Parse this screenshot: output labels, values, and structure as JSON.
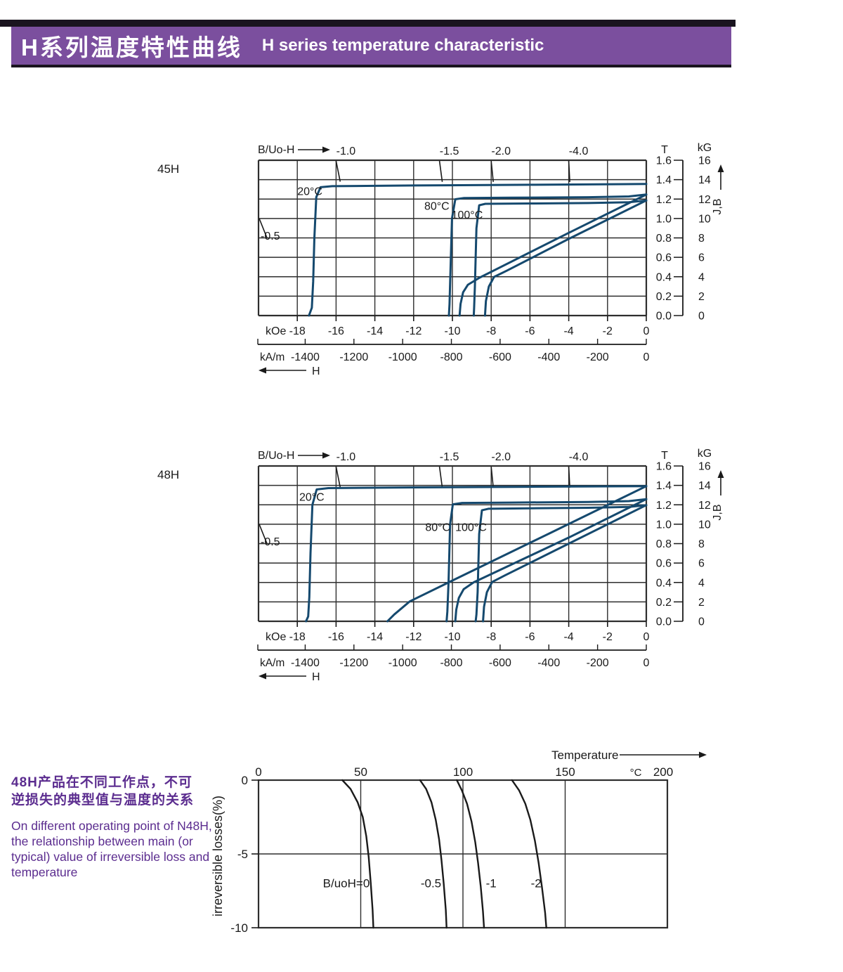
{
  "header": {
    "title_zh": "H系列温度特性曲线",
    "title_en": "H  series temperature characteristic"
  },
  "colors": {
    "banner": "#7b4f9e",
    "top_bar": "#1a141f",
    "curve_blue": "#15496e",
    "loss_curve": "#1a1a1a",
    "grid": "#2e2e2e",
    "ink": "#1a1a1a",
    "note_purple": "#5b2c8f"
  },
  "chart_data": [
    {
      "id": "demag-45H",
      "type": "line",
      "title": "45H",
      "permeance_label": "B/Uo-H",
      "h_label": "H",
      "jb_label": "J,B",
      "x_unit_primary": "kOe",
      "x_unit_secondary": "kA/m",
      "y_unit_primary": "T",
      "y_unit_secondary": "kG",
      "xlim_kOe": [
        -20,
        0
      ],
      "ylim_T": [
        0,
        1.6
      ],
      "x_ticks_kOe": [
        "-18",
        "-16",
        "-14",
        "-12",
        "-10",
        "-8",
        "-6",
        "-4",
        "-2",
        "0"
      ],
      "x_ticks_kAm": [
        "-1400",
        "-1200",
        "-1000",
        "-800",
        "-600",
        "-400",
        "-200",
        "0"
      ],
      "y_ticks_T": [
        "1.6",
        "1.4",
        "1.2",
        "1.0",
        "0.8",
        "0.6",
        "0.4",
        "0.2",
        "0.0"
      ],
      "y_ticks_kG": [
        "16",
        "14",
        "12",
        "10",
        "8",
        "6",
        "4",
        "2",
        "0"
      ],
      "load_lines": [
        {
          "label": "-0.5",
          "slope": 0.5,
          "edge": "left"
        },
        {
          "label": "-1.0",
          "slope": 1.0,
          "edge": "top"
        },
        {
          "label": "-1.5",
          "slope": 1.5,
          "edge": "top"
        },
        {
          "label": "-2.0",
          "slope": 2.0,
          "edge": "top"
        },
        {
          "label": "-4.0",
          "slope": 4.0,
          "edge": "top"
        }
      ],
      "series": [
        {
          "name": "20C-J",
          "points": [
            [
              0,
              1.355
            ],
            [
              -6,
              1.347
            ],
            [
              -12,
              1.34
            ],
            [
              -16.2,
              1.333
            ],
            [
              -16.8,
              1.322
            ],
            [
              -17.02,
              1.22
            ],
            [
              -17.12,
              0.8
            ],
            [
              -17.18,
              0.35
            ],
            [
              -17.25,
              0.08
            ],
            [
              -17.4,
              0
            ]
          ]
        },
        {
          "name": "80C-J",
          "points": [
            [
              0,
              1.247
            ],
            [
              -0.9,
              1.227
            ],
            [
              -3,
              1.219
            ],
            [
              -7,
              1.214
            ],
            [
              -9.4,
              1.211
            ],
            [
              -9.85,
              1.198
            ],
            [
              -10.02,
              1.0
            ],
            [
              -10.1,
              0.45
            ],
            [
              -10.15,
              0.12
            ],
            [
              -10.18,
              0
            ]
          ]
        },
        {
          "name": "100C-J",
          "points": [
            [
              0,
              1.186
            ],
            [
              -0.9,
              1.167
            ],
            [
              -3,
              1.159
            ],
            [
              -6,
              1.155
            ],
            [
              -8.3,
              1.151
            ],
            [
              -8.62,
              1.136
            ],
            [
              -8.76,
              0.9
            ],
            [
              -8.84,
              0.3
            ],
            [
              -8.88,
              0.08
            ],
            [
              -8.9,
              0
            ]
          ]
        },
        {
          "name": "80C-B",
          "points": [
            [
              0,
              1.247
            ],
            [
              -4,
              0.852
            ],
            [
              -8.6,
              0.39
            ],
            [
              -9.2,
              0.318
            ],
            [
              -9.45,
              0.24
            ],
            [
              -9.58,
              0.12
            ],
            [
              -9.63,
              0
            ]
          ]
        },
        {
          "name": "100C-B",
          "points": [
            [
              0,
              1.186
            ],
            [
              -4,
              0.79
            ],
            [
              -7.2,
              0.462
            ],
            [
              -7.85,
              0.398
            ],
            [
              -8.12,
              0.3
            ],
            [
              -8.27,
              0.15
            ],
            [
              -8.32,
              0
            ]
          ]
        }
      ],
      "curve_labels": [
        {
          "text": "20°C",
          "H": -18.0,
          "T": 1.24
        },
        {
          "text": "80°C",
          "H": -11.45,
          "T": 1.09
        },
        {
          "text": "100°C",
          "H": -10.05,
          "T": 1.0
        }
      ]
    },
    {
      "id": "demag-48H",
      "type": "line",
      "title": "48H",
      "permeance_label": "B/Uo-H",
      "h_label": "H",
      "jb_label": "J,B",
      "x_unit_primary": "kOe",
      "x_unit_secondary": "kA/m",
      "y_unit_primary": "T",
      "y_unit_secondary": "kG",
      "xlim_kOe": [
        -20,
        0
      ],
      "ylim_T": [
        0,
        1.6
      ],
      "x_ticks_kOe": [
        "-18",
        "-16",
        "-14",
        "-12",
        "-10",
        "-8",
        "-6",
        "-4",
        "-2",
        "0"
      ],
      "x_ticks_kAm": [
        "-1400",
        "-1200",
        "-1000",
        "-800",
        "-600",
        "-400",
        "-200",
        "0"
      ],
      "y_ticks_T": [
        "1.6",
        "1.4",
        "1.2",
        "1.0",
        "0.8",
        "0.6",
        "0.4",
        "0.2",
        "0.0"
      ],
      "y_ticks_kG": [
        "16",
        "14",
        "12",
        "10",
        "8",
        "6",
        "4",
        "2",
        "0"
      ],
      "load_lines": [
        {
          "label": "-0.5",
          "slope": 0.5,
          "edge": "left"
        },
        {
          "label": "-1.0",
          "slope": 1.0,
          "edge": "top"
        },
        {
          "label": "-1.5",
          "slope": 1.5,
          "edge": "top"
        },
        {
          "label": "-2.0",
          "slope": 2.0,
          "edge": "top"
        },
        {
          "label": "-4.0",
          "slope": 4.0,
          "edge": "top"
        }
      ],
      "series": [
        {
          "name": "20C-J",
          "points": [
            [
              0,
              1.392
            ],
            [
              -6,
              1.386
            ],
            [
              -12,
              1.379
            ],
            [
              -16.4,
              1.372
            ],
            [
              -17.0,
              1.358
            ],
            [
              -17.22,
              1.2
            ],
            [
              -17.32,
              0.7
            ],
            [
              -17.38,
              0.25
            ],
            [
              -17.44,
              0.05
            ],
            [
              -17.55,
              0
            ]
          ]
        },
        {
          "name": "80C-J",
          "points": [
            [
              0,
              1.258
            ],
            [
              -0.9,
              1.238
            ],
            [
              -3,
              1.229
            ],
            [
              -7,
              1.223
            ],
            [
              -9.5,
              1.219
            ],
            [
              -9.98,
              1.205
            ],
            [
              -10.12,
              1.0
            ],
            [
              -10.2,
              0.4
            ],
            [
              -10.26,
              0.1
            ],
            [
              -10.3,
              0
            ]
          ]
        },
        {
          "name": "100C-J",
          "points": [
            [
              0,
              1.197
            ],
            [
              -0.9,
              1.178
            ],
            [
              -3,
              1.169
            ],
            [
              -6,
              1.164
            ],
            [
              -8.15,
              1.159
            ],
            [
              -8.48,
              1.143
            ],
            [
              -8.62,
              0.9
            ],
            [
              -8.7,
              0.3
            ],
            [
              -8.76,
              0.07
            ],
            [
              -8.8,
              0
            ]
          ]
        },
        {
          "name": "20C-B",
          "points": [
            [
              0,
              1.392
            ],
            [
              -5,
              0.905
            ],
            [
              -10,
              0.42
            ],
            [
              -12.2,
              0.205
            ],
            [
              -13.0,
              0.07
            ],
            [
              -13.35,
              0
            ]
          ]
        },
        {
          "name": "80C-B",
          "points": [
            [
              0,
              1.258
            ],
            [
              -4,
              0.862
            ],
            [
              -8.9,
              0.402
            ],
            [
              -9.42,
              0.33
            ],
            [
              -9.67,
              0.24
            ],
            [
              -9.8,
              0.12
            ],
            [
              -9.85,
              0
            ]
          ]
        },
        {
          "name": "100C-B",
          "points": [
            [
              0,
              1.197
            ],
            [
              -4,
              0.8
            ],
            [
              -7.3,
              0.472
            ],
            [
              -7.95,
              0.405
            ],
            [
              -8.22,
              0.3
            ],
            [
              -8.37,
              0.15
            ],
            [
              -8.42,
              0
            ]
          ]
        }
      ],
      "curve_labels": [
        {
          "text": "20°C",
          "H": -17.9,
          "T": 1.24
        },
        {
          "text": "80°C",
          "H": -11.4,
          "T": 0.93
        },
        {
          "text": "100°C",
          "H": -9.85,
          "T": 0.93
        }
      ]
    },
    {
      "id": "loss-N48H",
      "type": "line",
      "title": "N48H irreversible loss vs temperature",
      "x_label": "Temperature",
      "x_unit": "°C",
      "y_label": "irreversible  losses(%)",
      "xlim": [
        0,
        200
      ],
      "ylim": [
        -10,
        0
      ],
      "x_ticks": [
        "0",
        "50",
        "100",
        "150",
        "200"
      ],
      "y_ticks": [
        "0",
        "-5",
        "-10"
      ],
      "series": [
        {
          "name": "B/uoH=0",
          "points": [
            [
              41,
              0
            ],
            [
              45,
              -0.6
            ],
            [
              48.5,
              -1.5
            ],
            [
              51,
              -2.5
            ],
            [
              52.7,
              -3.8
            ],
            [
              53.9,
              -5.2
            ],
            [
              54.9,
              -7
            ],
            [
              55.8,
              -8.8
            ],
            [
              56.2,
              -10
            ]
          ]
        },
        {
          "name": "-0.5",
          "points": [
            [
              79,
              0
            ],
            [
              82,
              -0.6
            ],
            [
              84.6,
              -1.5
            ],
            [
              86.7,
              -2.7
            ],
            [
              88.3,
              -4
            ],
            [
              89.5,
              -5.4
            ],
            [
              90.6,
              -7
            ],
            [
              91.6,
              -8.8
            ],
            [
              92,
              -10
            ]
          ]
        },
        {
          "name": "-1",
          "points": [
            [
              97,
              0
            ],
            [
              99.5,
              -0.7
            ],
            [
              102,
              -1.6
            ],
            [
              104.2,
              -2.8
            ],
            [
              106,
              -4.2
            ],
            [
              107.4,
              -5.6
            ],
            [
              108.7,
              -7.2
            ],
            [
              109.8,
              -8.9
            ],
            [
              110.3,
              -10
            ]
          ]
        },
        {
          "name": "-2",
          "points": [
            [
              124,
              0
            ],
            [
              127.5,
              -0.7
            ],
            [
              130.5,
              -1.6
            ],
            [
              133,
              -2.7
            ],
            [
              135.2,
              -4.1
            ],
            [
              137,
              -5.6
            ],
            [
              138.7,
              -7.3
            ],
            [
              140.2,
              -9
            ],
            [
              140.8,
              -10
            ]
          ]
        }
      ],
      "series_labels": [
        {
          "text": "B/uoH=0",
          "t": 54.4,
          "loss": -7.25,
          "anchor": "end"
        },
        {
          "text": "-0.5",
          "t": 89.4,
          "loss": -7.25,
          "anchor": "end"
        },
        {
          "text": "-1",
          "t": 111.2,
          "loss": -7.25,
          "anchor": "start"
        },
        {
          "text": "-2",
          "t": 138.4,
          "loss": -7.25,
          "anchor": "end"
        }
      ]
    }
  ],
  "note": {
    "zh": [
      "48H产品在不同工作点，不可",
      "逆损失的典型值与温度的关系"
    ],
    "en": [
      "On different operating point of N48H,",
      "the relationship between main (or",
      "typical) value of irreversible loss and",
      "temperature"
    ]
  }
}
